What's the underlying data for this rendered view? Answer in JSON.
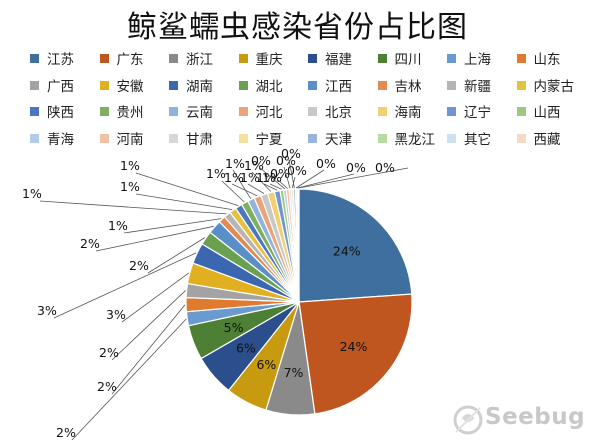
{
  "chart_data": {
    "type": "pie",
    "title": "鲸鲨蠕虫感染省份占比图",
    "legend_position": "top",
    "categories": [
      "江苏",
      "广东",
      "浙江",
      "重庆",
      "福建",
      "四川",
      "上海",
      "山东",
      "广西",
      "安徽",
      "湖南",
      "湖北",
      "江西",
      "吉林",
      "新疆",
      "内蒙古",
      "陕西",
      "贵州",
      "云南",
      "河北",
      "北京",
      "海南",
      "辽宁",
      "山西",
      "青海",
      "河南",
      "甘肃",
      "宁夏",
      "天津",
      "黑龙江",
      "其它",
      "西藏"
    ],
    "values": [
      24,
      24,
      7,
      6,
      6,
      5,
      2,
      2,
      2,
      3,
      3,
      2,
      2,
      1,
      1,
      1,
      1,
      1,
      1,
      1,
      1,
      1,
      0.8,
      0.5,
      0.4,
      0.4,
      0.3,
      0.3,
      0.3,
      0.2,
      0.2,
      0.1
    ],
    "labels": [
      "24%",
      "24%",
      "7%",
      "6%",
      "6%",
      "5%",
      "2%",
      "2%",
      "2%",
      "3%",
      "3%",
      "2%",
      "2%",
      "1%",
      "1%",
      "1%",
      "1%",
      "1%",
      "1%",
      "1%",
      "1%",
      "1%",
      "1%",
      "1%",
      "0%",
      "0%",
      "0%",
      "0%",
      "0%",
      "0%",
      "0%",
      "0%"
    ],
    "colors": [
      "#3f6f9f",
      "#c0561f",
      "#8a8a8a",
      "#c89a10",
      "#2a4f8c",
      "#4d7f35",
      "#6a9ad0",
      "#e07a2f",
      "#a3a3a3",
      "#e0b020",
      "#3b66b0",
      "#6aa050",
      "#5a8fc8",
      "#e38a50",
      "#b5b5b5",
      "#e6c040",
      "#4a78c0",
      "#7fb060",
      "#8fb4dc",
      "#eba47a",
      "#c8c8c8",
      "#f0d070",
      "#6e95d0",
      "#9cc880",
      "#b0cce8",
      "#f2c0a4",
      "#d8d8d8",
      "#f6e0a0",
      "#9ab4e0",
      "#b8d8a4",
      "#cfe0f2",
      "#f6d8c4"
    ]
  },
  "watermark": {
    "brand": "Seebug"
  }
}
